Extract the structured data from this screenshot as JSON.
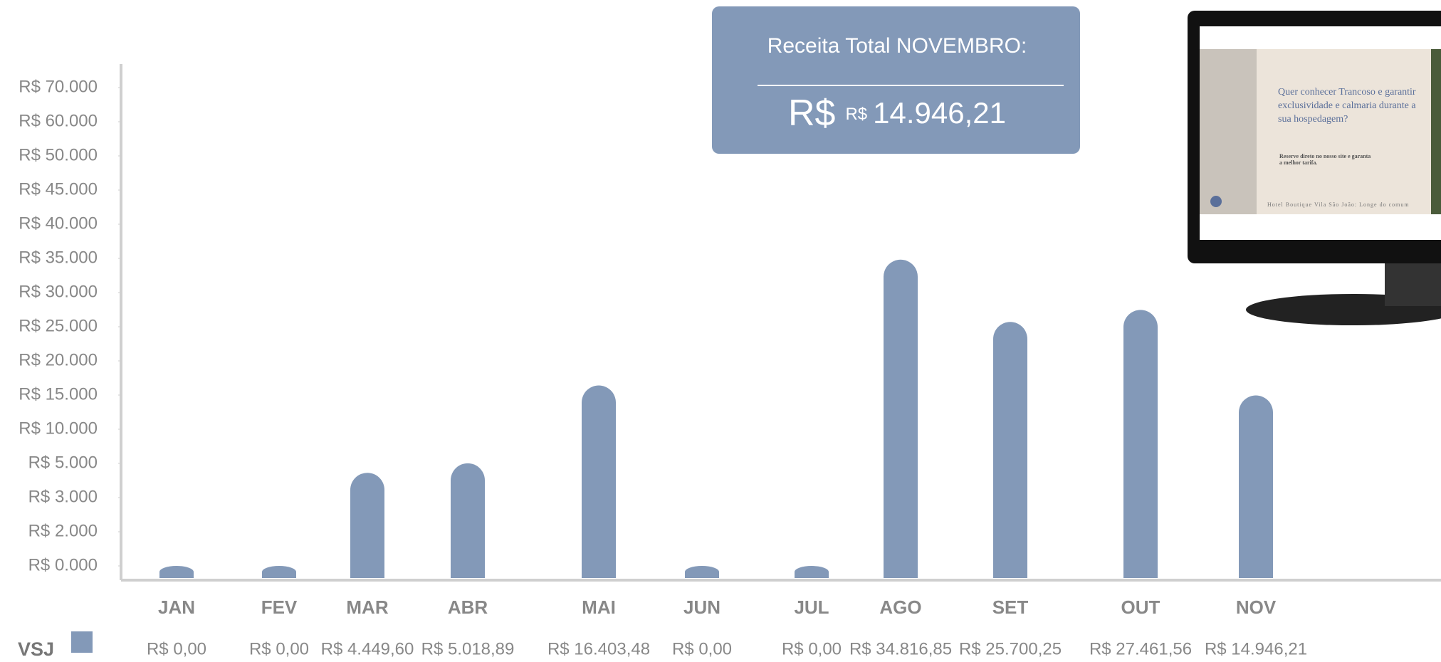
{
  "chart_data": {
    "type": "bar",
    "categories": [
      "JAN",
      "FEV",
      "MAR",
      "ABR",
      "MAI",
      "JUN",
      "JUL",
      "AGO",
      "SET",
      "OUT",
      "NOV"
    ],
    "series": [
      {
        "name": "VSJ",
        "color": "#8399b8",
        "values": [
          0,
          0,
          4449.6,
          5018.89,
          16403.48,
          0,
          0,
          34816.85,
          25700.25,
          27461.56,
          14946.21
        ],
        "value_labels": [
          "R$ 0,00",
          "R$ 0,00",
          "R$ 4.449,60",
          "R$ 5.018,89",
          "R$ 16.403,48",
          "R$ 0,00",
          "R$ 0,00",
          "R$ 34.816,85",
          "R$ 25.700,25",
          "R$ 27.461,56",
          "R$ 14.946,21"
        ]
      }
    ],
    "ylim": [
      0,
      70000
    ],
    "yticks": [
      {
        "value": 0,
        "label": "R$ 0.000"
      },
      {
        "value": 2000,
        "label": "R$ 2.000"
      },
      {
        "value": 3000,
        "label": "R$ 3.000"
      },
      {
        "value": 5000,
        "label": "R$ 5.000"
      },
      {
        "value": 10000,
        "label": "R$ 10.000"
      },
      {
        "value": 15000,
        "label": "R$ 15.000"
      },
      {
        "value": 20000,
        "label": "R$ 20.000"
      },
      {
        "value": 25000,
        "label": "R$ 25.000"
      },
      {
        "value": 30000,
        "label": "R$ 30.000"
      },
      {
        "value": 35000,
        "label": "R$ 35.000"
      },
      {
        "value": 40000,
        "label": "R$ 40.000"
      },
      {
        "value": 45000,
        "label": "R$ 45.000"
      },
      {
        "value": 50000,
        "label": "R$ 50.000"
      },
      {
        "value": 60000,
        "label": "R$ 60.000"
      },
      {
        "value": 70000,
        "label": "R$ 70.000"
      }
    ],
    "annotation": {
      "title": "Receita Total NOVEMBRO:",
      "currency": "R$",
      "small_currency": "R$",
      "value": "14.946,21"
    },
    "screenshot": {
      "headline": "Quer conhecer Trancoso e garantir exclusividade e calmaria durante a sua hospedagem?",
      "subline": "Reserve direto no nosso site e garanta a melhor tarifa.",
      "footer": "Hotel Boutique Vila São João: Longe do comum"
    }
  }
}
